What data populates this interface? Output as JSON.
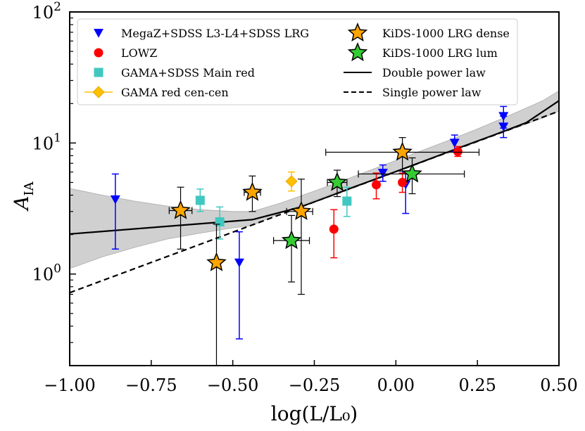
{
  "chart_data": {
    "type": "scatter",
    "title": "",
    "xlabel": "log(L/L₀)",
    "ylabel": "A_IA",
    "xlim": [
      -1.0,
      0.5
    ],
    "ylim": [
      0.2,
      100
    ],
    "yscale": "log",
    "grid": false,
    "legend_position": "top-left",
    "x_ticks": [
      -1.0,
      -0.75,
      -0.5,
      -0.25,
      0.0,
      0.25,
      0.5
    ],
    "x_tick_labels": [
      "−1.00",
      "−0.75",
      "−0.50",
      "−0.25",
      "0.00",
      "0.25",
      "0.50"
    ],
    "y_ticks": [
      {
        "value": 1,
        "base": "10",
        "exp": "0"
      },
      {
        "value": 10,
        "base": "10",
        "exp": "1"
      },
      {
        "value": 100,
        "base": "10",
        "exp": "2"
      }
    ],
    "series": [
      {
        "name": "MegaZ+SDSS L3-L4+SDSS LRG",
        "marker": "triangle-down",
        "color": "#0000ff",
        "points": [
          {
            "x": -0.86,
            "y": 3.7,
            "ylo": 1.55,
            "yhi": 5.8
          },
          {
            "x": -0.48,
            "y": 1.22,
            "ylo": 0.32,
            "yhi": 2.1
          },
          {
            "x": -0.04,
            "y": 5.9,
            "ylo": 5.1,
            "yhi": 6.8
          },
          {
            "x": 0.03,
            "y": 4.8,
            "ylo": 2.9,
            "yhi": 6.0
          },
          {
            "x": 0.18,
            "y": 10.0,
            "ylo": 8.6,
            "yhi": 11.5
          },
          {
            "x": 0.33,
            "y": 16.0,
            "ylo": 13.0,
            "yhi": 19.0
          },
          {
            "x": 0.33,
            "y": 13.3,
            "ylo": 11.0,
            "yhi": 16.0
          }
        ]
      },
      {
        "name": "LOWZ",
        "marker": "circle",
        "color": "#ff0000",
        "points": [
          {
            "x": -0.19,
            "y": 2.2,
            "ylo": 1.33,
            "yhi": 3.1
          },
          {
            "x": -0.06,
            "y": 4.8,
            "ylo": 3.75,
            "yhi": 5.9
          },
          {
            "x": 0.02,
            "y": 5.0,
            "ylo": 4.2,
            "yhi": 5.9
          },
          {
            "x": 0.19,
            "y": 8.6,
            "ylo": 7.9,
            "yhi": 9.4
          }
        ]
      },
      {
        "name": "GAMA+SDSS Main red",
        "marker": "square",
        "color": "#40c8c0",
        "points": [
          {
            "x": -0.6,
            "y": 3.65,
            "ylo": 3.0,
            "yhi": 4.45
          },
          {
            "x": -0.54,
            "y": 2.5,
            "ylo": 1.85,
            "yhi": 3.25
          },
          {
            "x": -0.15,
            "y": 3.6,
            "ylo": 2.75,
            "yhi": 4.6
          }
        ]
      },
      {
        "name": "GAMA red cen-cen",
        "marker": "diamond",
        "color": "#ffc000",
        "points": [
          {
            "x": -0.32,
            "y": 5.1,
            "ylo": 4.3,
            "yhi": 6.0
          }
        ]
      },
      {
        "name": "KiDS-1000 LRG dense",
        "marker": "star",
        "color": "#ffa500",
        "points": [
          {
            "x": -0.66,
            "y": 3.05,
            "ylo": 1.55,
            "yhi": 4.6,
            "xlo": -0.695,
            "xhi": -0.625
          },
          {
            "x": -0.55,
            "y": 1.22,
            "ylo": 0.2,
            "yhi": 2.4
          },
          {
            "x": -0.44,
            "y": 4.2,
            "ylo": 3.0,
            "yhi": 5.6,
            "xlo": -0.465,
            "xhi": -0.415
          },
          {
            "x": -0.29,
            "y": 3.0,
            "ylo": 0.7,
            "yhi": 5.3,
            "xlo": -0.335,
            "xhi": -0.255
          },
          {
            "x": 0.02,
            "y": 8.5,
            "ylo": 6.1,
            "yhi": 11.0,
            "xlo": -0.215,
            "xhi": 0.255
          }
        ]
      },
      {
        "name": "KiDS-1000 LRG lum",
        "marker": "star",
        "color": "#33cc33",
        "points": [
          {
            "x": -0.32,
            "y": 1.8,
            "ylo": 0.87,
            "yhi": 2.8,
            "xlo": -0.375,
            "xhi": -0.265
          },
          {
            "x": -0.18,
            "y": 5.0,
            "ylo": 3.9,
            "yhi": 6.2,
            "xlo": -0.21,
            "xhi": -0.15
          },
          {
            "x": 0.05,
            "y": 5.8,
            "ylo": 4.1,
            "yhi": 7.7,
            "xlo": -0.115,
            "xhi": 0.21
          }
        ]
      }
    ],
    "lines": [
      {
        "name": "Double power law",
        "style": "solid",
        "color": "#000000",
        "x": [
          -1.0,
          -0.44,
          -0.3,
          -0.2,
          -0.1,
          0.0,
          0.1,
          0.2,
          0.3,
          0.4,
          0.5
        ],
        "y": [
          2.02,
          2.6,
          3.2,
          3.95,
          4.9,
          6.05,
          7.5,
          9.3,
          11.5,
          14.3,
          21.0
        ]
      },
      {
        "name": "Single power law",
        "style": "dashed",
        "color": "#000000",
        "x": [
          -1.0,
          0.5
        ],
        "y": [
          0.72,
          17.5
        ]
      }
    ],
    "band": {
      "color": "#c8c8c8",
      "x": [
        -1.0,
        -0.9,
        -0.8,
        -0.7,
        -0.6,
        -0.5,
        -0.44,
        -0.35,
        -0.25,
        -0.15,
        -0.05,
        0.05,
        0.15,
        0.25,
        0.35,
        0.45,
        0.5
      ],
      "upper": [
        4.5,
        4.0,
        3.6,
        3.3,
        3.1,
        3.0,
        3.0,
        3.5,
        4.3,
        5.3,
        6.6,
        8.2,
        10.2,
        12.8,
        16.3,
        21.0,
        25.0
      ],
      "lower": [
        1.1,
        1.35,
        1.6,
        1.85,
        2.05,
        2.25,
        2.35,
        2.95,
        3.65,
        4.5,
        5.45,
        6.7,
        8.3,
        10.3,
        12.6,
        15.5,
        17.5
      ]
    },
    "legend": [
      {
        "label": "MegaZ+SDSS L3-L4+SDSS LRG",
        "marker": "triangle-down",
        "color": "#0000ff"
      },
      {
        "label": "LOWZ",
        "marker": "circle",
        "color": "#ff0000"
      },
      {
        "label": "GAMA+SDSS Main red",
        "marker": "square",
        "color": "#40c8c0"
      },
      {
        "label": "GAMA red cen-cen",
        "marker": "diamond",
        "color": "#ffc000"
      },
      {
        "label": "KiDS-1000 LRG dense",
        "marker": "star",
        "color": "#ffa500"
      },
      {
        "label": "KiDS-1000 LRG lum",
        "marker": "star",
        "color": "#33cc33"
      },
      {
        "label": "Double power law",
        "marker": "line-solid",
        "color": "#000000"
      },
      {
        "label": "Single power law",
        "marker": "line-dashed",
        "color": "#000000"
      }
    ]
  }
}
